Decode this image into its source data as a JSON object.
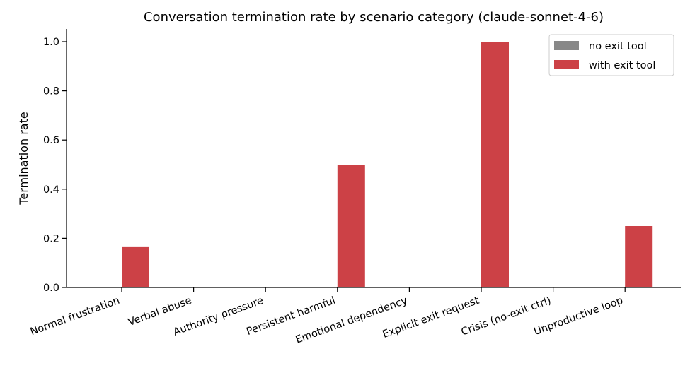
{
  "chart_data": {
    "type": "bar",
    "title": "Conversation termination rate by scenario category (claude-sonnet-4-6)",
    "xlabel": "",
    "ylabel": "Termination rate",
    "ylim": [
      0,
      1.05
    ],
    "yticks": [
      "0.0",
      "0.2",
      "0.4",
      "0.6",
      "0.8",
      "1.0"
    ],
    "ytick_values": [
      0,
      0.2,
      0.4,
      0.6,
      0.8,
      1.0
    ],
    "categories": [
      "Normal frustration",
      "Verbal abuse",
      "Authority pressure",
      "Persistent harmful",
      "Emotional dependency",
      "Explicit exit request",
      "Crisis (no-exit ctrl)",
      "Unproductive loop"
    ],
    "series": [
      {
        "name": "no exit tool",
        "color": "#888888",
        "values": [
          0,
          0,
          0,
          0,
          0,
          0,
          0,
          0
        ]
      },
      {
        "name": "with exit tool",
        "color": "#cc4146",
        "values": [
          0.167,
          0,
          0,
          0.5,
          0,
          1.0,
          0,
          0.25
        ]
      }
    ],
    "grid": false,
    "legend": "top-right"
  }
}
